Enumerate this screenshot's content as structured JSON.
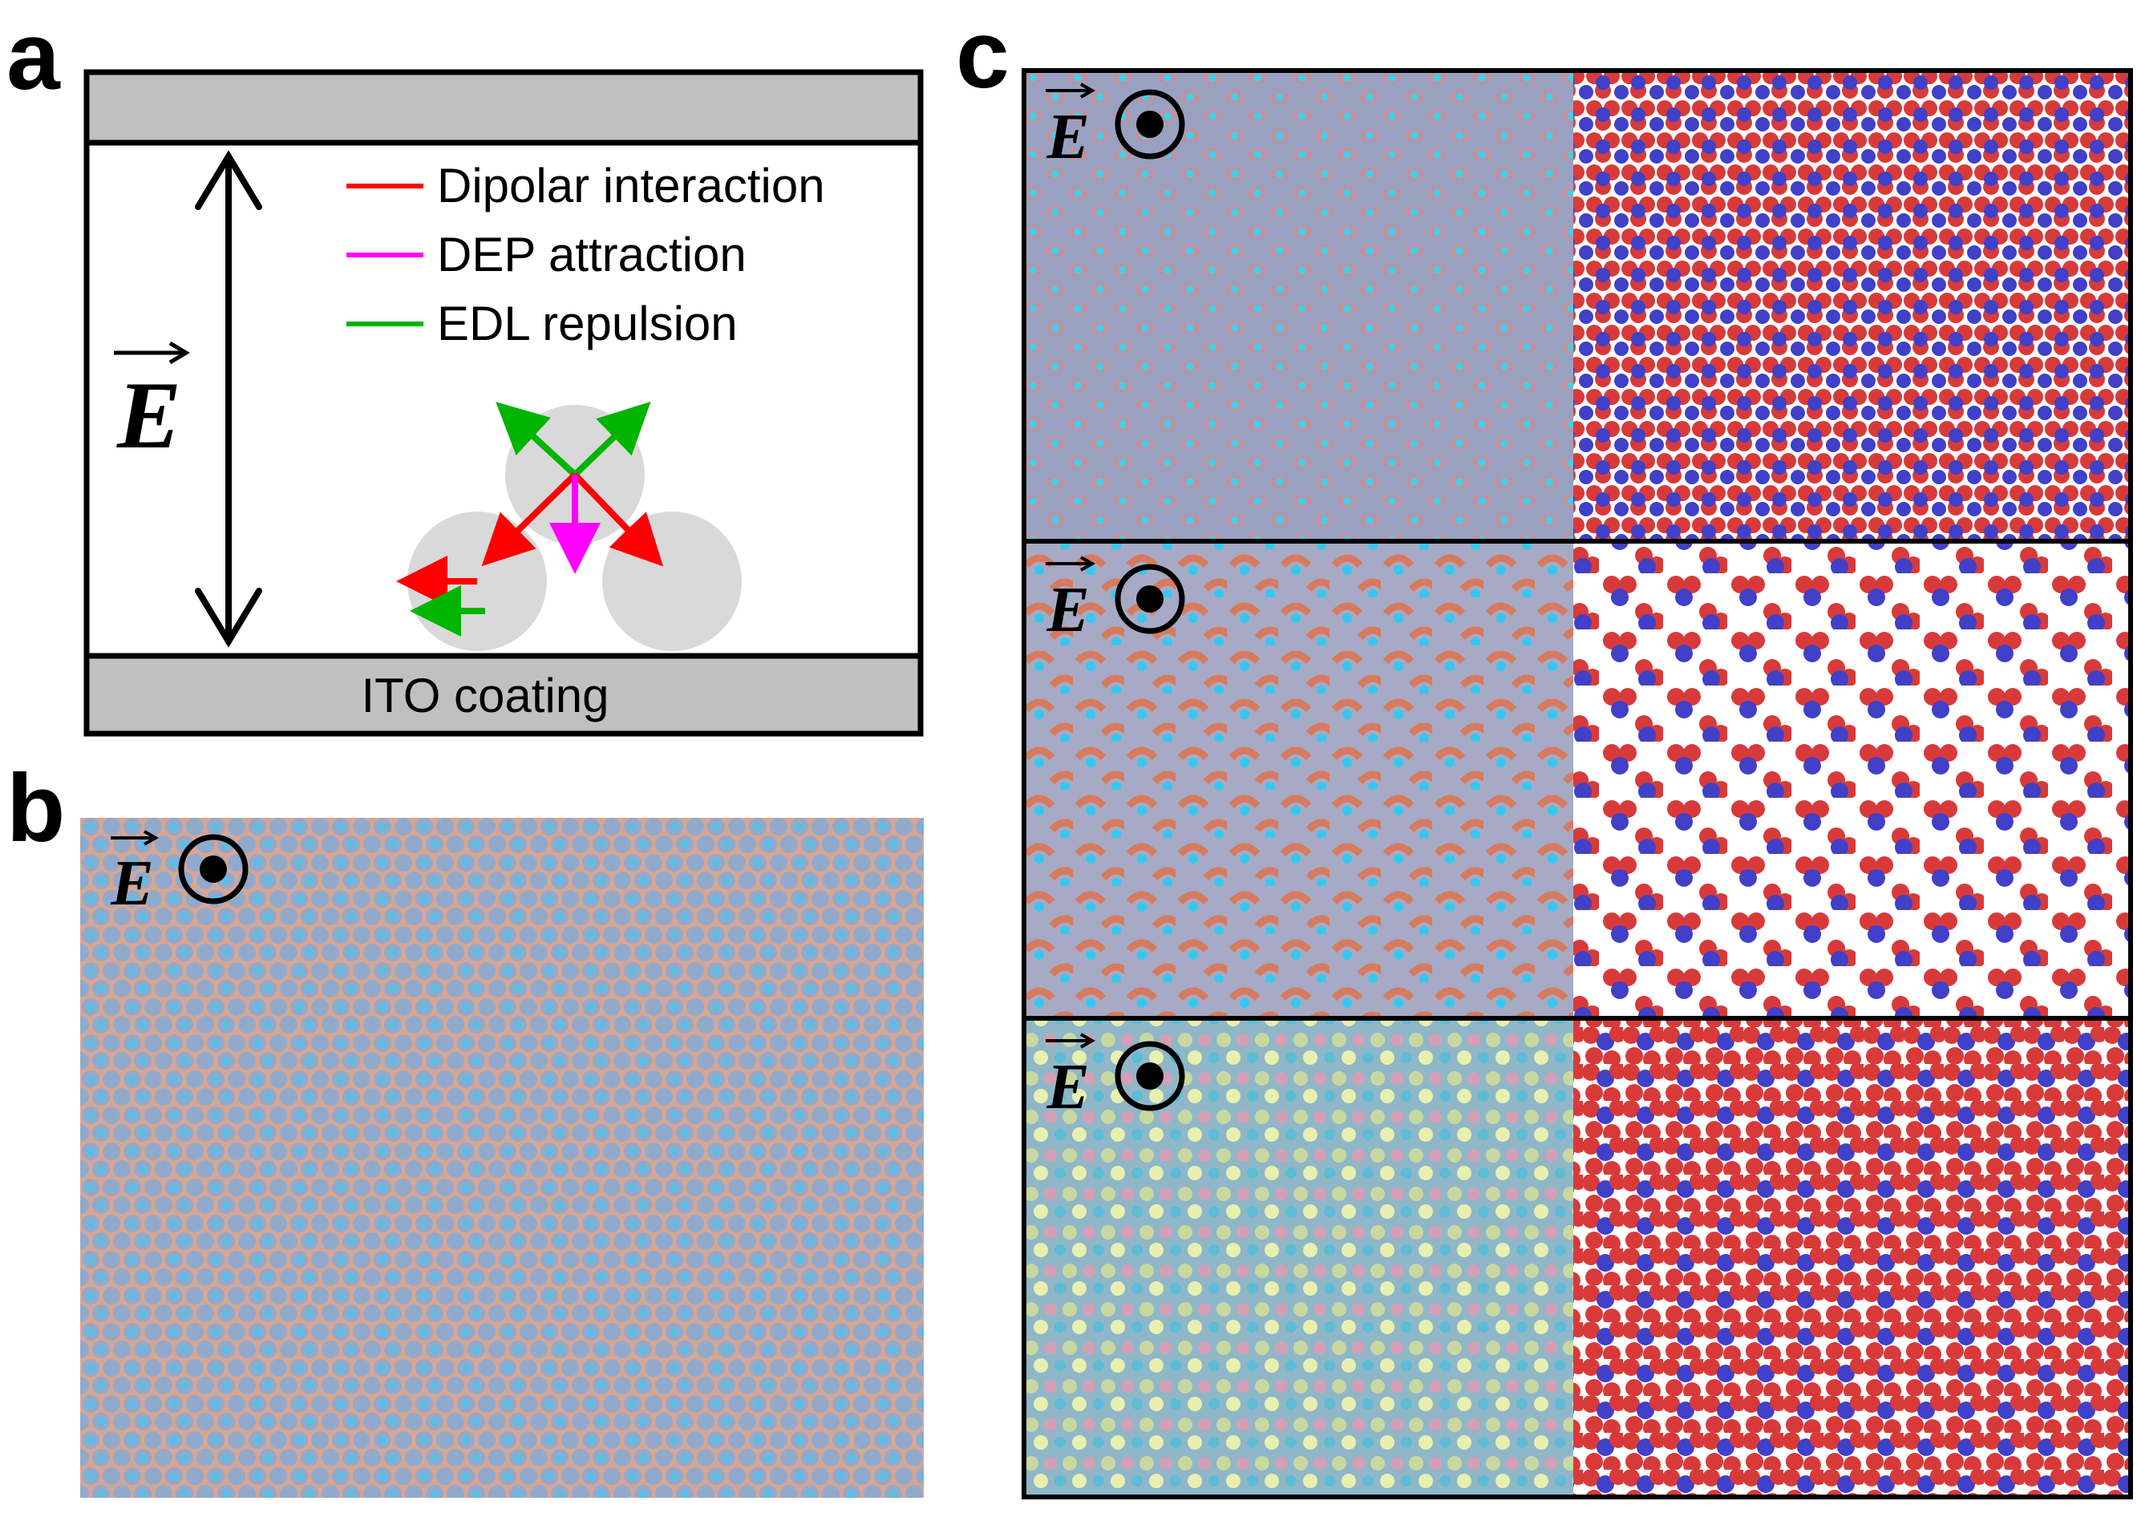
{
  "panels": {
    "a": {
      "letter": "a",
      "field_symbol": "E",
      "legend": [
        {
          "label": "Dipolar interaction",
          "color": "#ff0000"
        },
        {
          "label": "DEP attraction",
          "color": "#ff00ff"
        },
        {
          "label": "EDL repulsion",
          "color": "#00b400"
        }
      ],
      "bottom_plate_label": "ITO coating",
      "plate_color": "#c0c0c0",
      "particle_color": "#d9d9d9"
    },
    "b": {
      "letter": "b",
      "field_symbol": "E",
      "image": "microscopy-colloid-lattice"
    },
    "c": {
      "letter": "c",
      "rows": [
        {
          "field_symbol": "E",
          "left": "microscopy-image",
          "right": "simulation-snapshot"
        },
        {
          "field_symbol": "E",
          "left": "microscopy-image",
          "right": "simulation-snapshot"
        },
        {
          "field_symbol": "E",
          "left": "microscopy-image",
          "right": "simulation-snapshot"
        }
      ],
      "sim_colors": {
        "small": "#d83a3a",
        "large": "#4040c8"
      }
    }
  }
}
